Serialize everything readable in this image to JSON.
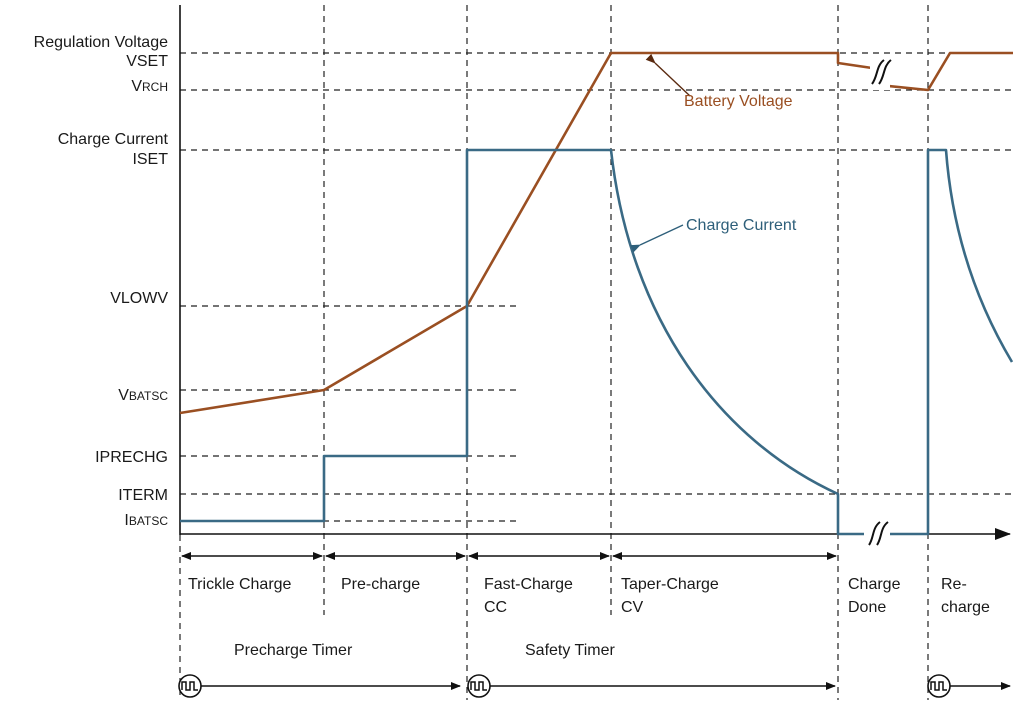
{
  "y_axis_labels": {
    "regulation_voltage": "Regulation Voltage",
    "vset": "VSET",
    "vrch_main": "V",
    "vrch_sub": "RCH",
    "charge_current": "Charge Current",
    "iset": "ISET",
    "vlowv": "VLOWV",
    "vbatsc_main": "V",
    "vbatsc_sub": "BATSC",
    "iprechg": "IPRECHG",
    "iterm": "ITERM",
    "ibatsc_main": "I",
    "ibatsc_sub": "BATSC"
  },
  "traces": {
    "battery_voltage": "Battery Voltage",
    "charge_current": "Charge Current",
    "battery_voltage_color": "#9a4f22",
    "charge_current_color": "#3a6a85"
  },
  "phases": [
    {
      "line1": "Trickle Charge",
      "line2": ""
    },
    {
      "line1": "Pre-charge",
      "line2": ""
    },
    {
      "line1": "Fast-Charge",
      "line2": "CC"
    },
    {
      "line1": "Taper-Charge",
      "line2": "CV"
    },
    {
      "line1": "Charge",
      "line2": "Done"
    },
    {
      "line1": "Re-",
      "line2": "charge"
    }
  ],
  "timers": {
    "precharge": "Precharge Timer",
    "safety": "Safety Timer",
    "timer_icon": "clock-pulse-icon"
  },
  "break_icon": "axis-break-icon"
}
